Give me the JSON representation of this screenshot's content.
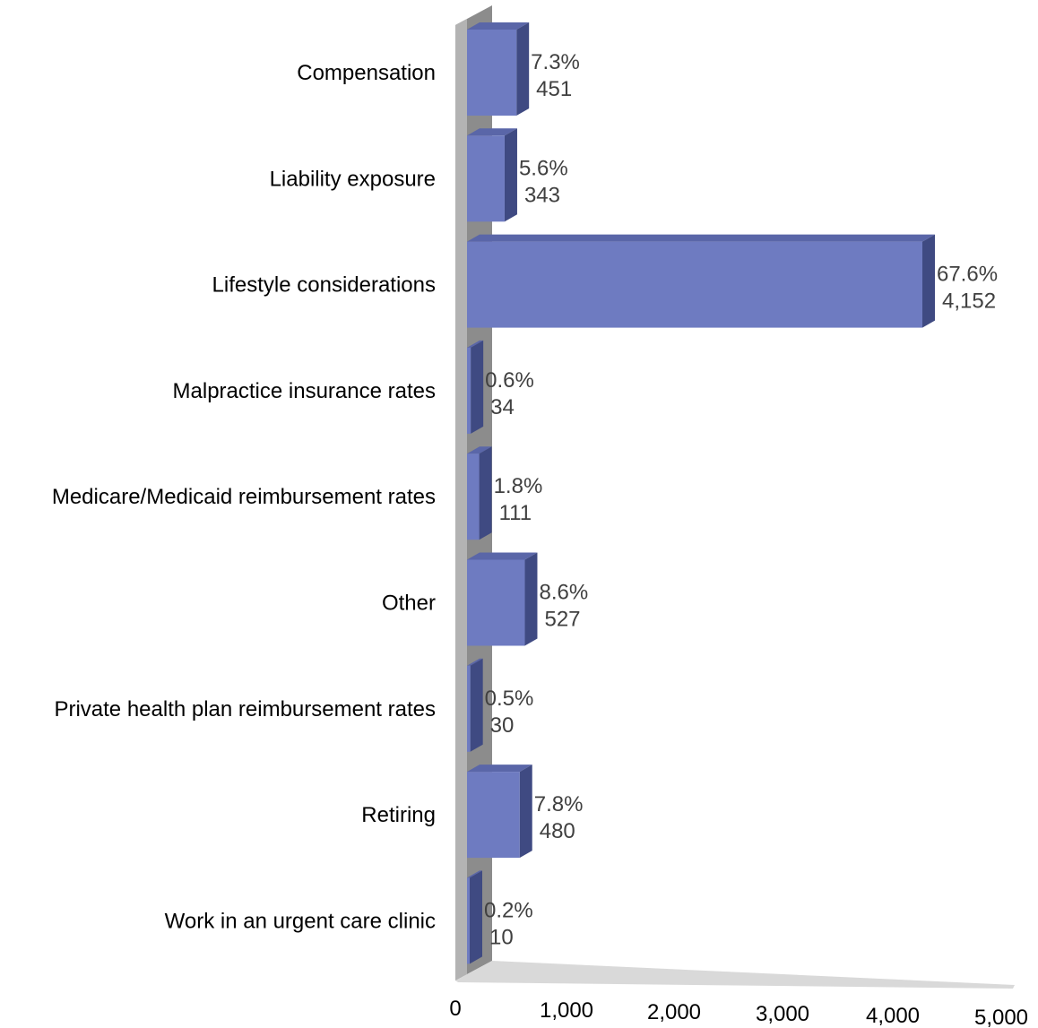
{
  "chart_data": {
    "type": "bar",
    "orientation": "horizontal",
    "style": "3d",
    "title": "",
    "xlabel": "",
    "ylabel": "",
    "xlim": [
      0,
      5000
    ],
    "categories": [
      "Compensation",
      "Liability exposure",
      "Lifestyle considerations",
      "Malpractice insurance rates",
      "Medicare/Medicaid reimbursement rates",
      "Other",
      "Private health plan reimbursement rates",
      "Retiring",
      "Work in an urgent care clinic"
    ],
    "values": [
      451,
      343,
      4152,
      34,
      111,
      527,
      30,
      480,
      10
    ],
    "value_labels": [
      "451",
      "343",
      "4,152",
      "34",
      "111",
      "527",
      "30",
      "480",
      "10"
    ],
    "percent_labels": [
      "7.3%",
      "5.6%",
      "67.6%",
      "0.6%",
      "1.8%",
      "8.6%",
      "0.5%",
      "7.8%",
      "0.2%"
    ],
    "x_ticks": [
      "0",
      "1,000",
      "2,000",
      "3,000",
      "4,000",
      "5,000"
    ],
    "grid": false,
    "legend": "none",
    "colors": {
      "bar_front": "#6e7bc1",
      "bar_side": "#3f4a82",
      "bar_top": "#5a66a8",
      "wall_front": "#b3b3b3",
      "wall_side": "#8c8c8c"
    }
  }
}
